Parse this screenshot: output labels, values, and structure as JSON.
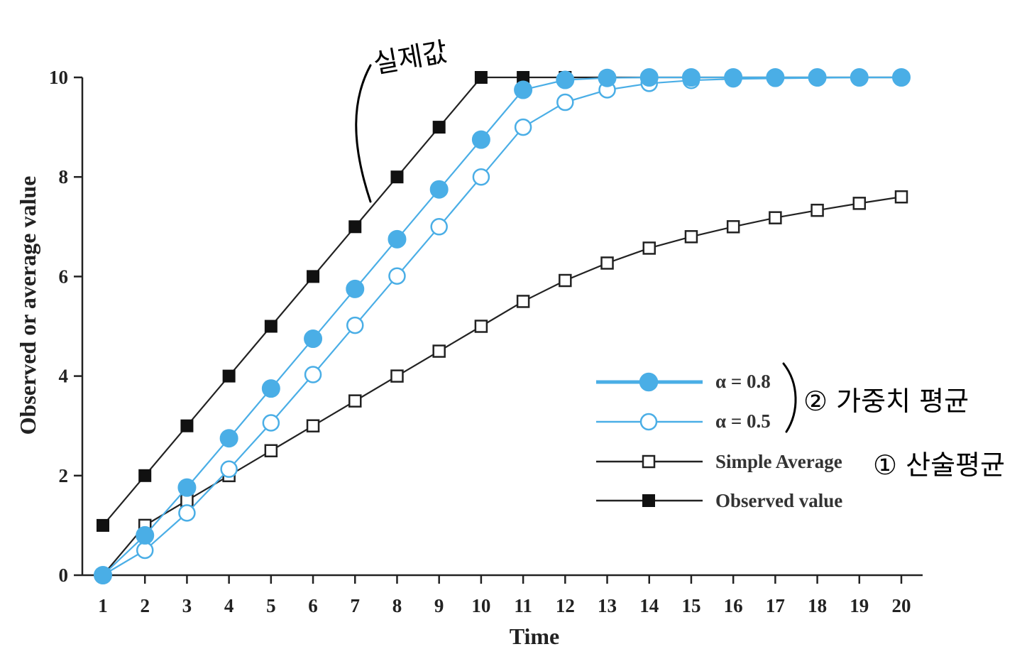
{
  "chart_data": {
    "type": "line",
    "xlabel": "Time",
    "ylabel": "Observed or average value",
    "xlim": [
      1,
      20
    ],
    "ylim": [
      0,
      10
    ],
    "x": [
      1,
      2,
      3,
      4,
      5,
      6,
      7,
      8,
      9,
      10,
      11,
      12,
      13,
      14,
      15,
      16,
      17,
      18,
      19,
      20
    ],
    "xticks": [
      "1",
      "2",
      "3",
      "4",
      "5",
      "6",
      "7",
      "8",
      "9",
      "10",
      "11",
      "12",
      "13",
      "14",
      "15",
      "16",
      "17",
      "18",
      "19",
      "20"
    ],
    "yticks": [
      "0",
      "2",
      "4",
      "6",
      "8",
      "10"
    ],
    "grid": false,
    "legend_position": "center-right",
    "series": [
      {
        "key": "alpha08",
        "name": "α = 0.8",
        "color": "#4aaee6",
        "marker": "filled-circle",
        "values": [
          0,
          0.8,
          1.76,
          2.75,
          3.75,
          4.75,
          5.75,
          6.75,
          7.75,
          8.75,
          9.75,
          9.95,
          9.99,
          10,
          10,
          10,
          10,
          10,
          10,
          10
        ]
      },
      {
        "key": "alpha05",
        "name": "α = 0.5",
        "color": "#4aaee6",
        "marker": "open-circle",
        "values": [
          0,
          0.5,
          1.25,
          2.13,
          3.06,
          4.03,
          5.02,
          6.01,
          7.0,
          8.0,
          9.0,
          9.5,
          9.75,
          9.88,
          9.94,
          9.97,
          9.98,
          9.99,
          10,
          10
        ]
      },
      {
        "key": "simple",
        "name": "Simple Average",
        "color": "#222222",
        "marker": "open-square",
        "values": [
          0,
          1.0,
          1.5,
          2.0,
          2.5,
          3.0,
          3.5,
          4.0,
          4.5,
          5.0,
          5.5,
          5.92,
          6.27,
          6.57,
          6.8,
          7.0,
          7.18,
          7.33,
          7.47,
          7.6
        ]
      },
      {
        "key": "observed",
        "name": "Observed value",
        "color": "#222222",
        "marker": "filled-square",
        "values": [
          1,
          2,
          3,
          4,
          5,
          6,
          7,
          8,
          9,
          10,
          10,
          10,
          10,
          10,
          10,
          10,
          10,
          10,
          10,
          10
        ]
      }
    ],
    "annotations": {
      "observed_note": "실제값",
      "weighted_note": "② 가중치 평균",
      "simple_note": "① 산술평균"
    }
  }
}
